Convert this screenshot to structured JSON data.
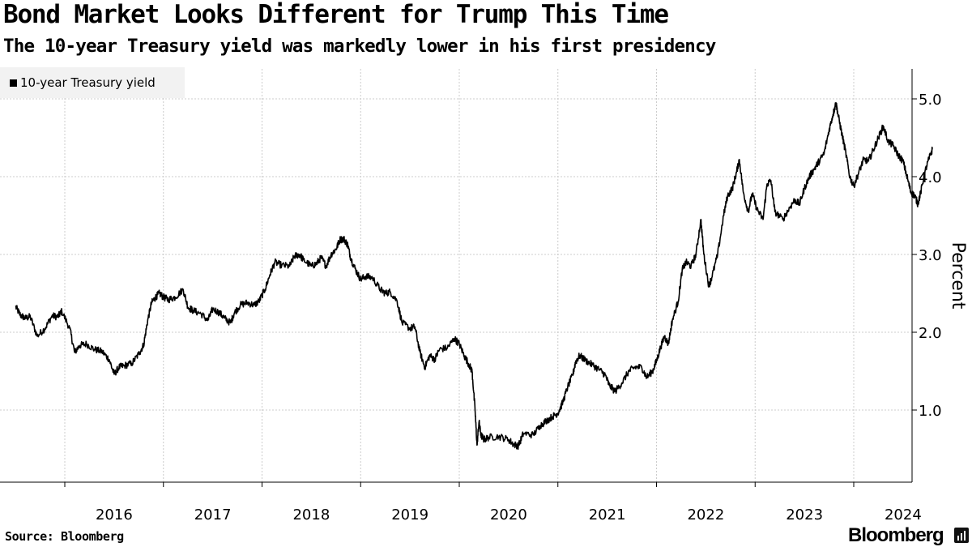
{
  "chart_data": {
    "type": "line",
    "title": "Bond Market Looks Different for Trump This Time",
    "subtitle": "The 10-year Treasury yield was markedly lower in his first presidency",
    "ylabel": "Percent",
    "xlabel": "",
    "ylim": [
      0.0,
      5.45
    ],
    "xlim": [
      2015.5,
      2024.83
    ],
    "y_ticks": [
      1.0,
      2.0,
      3.0,
      4.0,
      5.0
    ],
    "y_tick_labels": [
      "1.0",
      "2.0",
      "3.0",
      "4.0",
      "5.0"
    ],
    "x_ticks": [
      2016,
      2017,
      2018,
      2019,
      2020,
      2021,
      2022,
      2023,
      2024
    ],
    "x_tick_labels": [
      "2016",
      "2017",
      "2018",
      "2019",
      "2020",
      "2021",
      "2022",
      "2023",
      "2024"
    ],
    "grid": true,
    "legend_position": "top-left",
    "series": [
      {
        "name": "10-year Treasury yield",
        "color": "#000000",
        "points": [
          [
            2015.5,
            2.33
          ],
          [
            2015.55,
            2.22
          ],
          [
            2015.6,
            2.18
          ],
          [
            2015.65,
            2.2
          ],
          [
            2015.72,
            1.95
          ],
          [
            2015.8,
            2.05
          ],
          [
            2015.87,
            2.21
          ],
          [
            2015.93,
            2.2
          ],
          [
            2015.97,
            2.27
          ],
          [
            2016.05,
            2.05
          ],
          [
            2016.1,
            1.74
          ],
          [
            2016.15,
            1.83
          ],
          [
            2016.22,
            1.85
          ],
          [
            2016.3,
            1.78
          ],
          [
            2016.38,
            1.75
          ],
          [
            2016.45,
            1.65
          ],
          [
            2016.5,
            1.46
          ],
          [
            2016.55,
            1.55
          ],
          [
            2016.6,
            1.57
          ],
          [
            2016.68,
            1.6
          ],
          [
            2016.75,
            1.72
          ],
          [
            2016.8,
            1.84
          ],
          [
            2016.84,
            2.15
          ],
          [
            2016.88,
            2.38
          ],
          [
            2016.92,
            2.45
          ],
          [
            2016.96,
            2.5
          ],
          [
            2017.0,
            2.45
          ],
          [
            2017.05,
            2.42
          ],
          [
            2017.12,
            2.45
          ],
          [
            2017.2,
            2.55
          ],
          [
            2017.25,
            2.32
          ],
          [
            2017.3,
            2.28
          ],
          [
            2017.38,
            2.24
          ],
          [
            2017.45,
            2.15
          ],
          [
            2017.5,
            2.3
          ],
          [
            2017.57,
            2.25
          ],
          [
            2017.62,
            2.18
          ],
          [
            2017.68,
            2.12
          ],
          [
            2017.72,
            2.25
          ],
          [
            2017.78,
            2.35
          ],
          [
            2017.85,
            2.38
          ],
          [
            2017.92,
            2.35
          ],
          [
            2017.97,
            2.4
          ],
          [
            2018.03,
            2.55
          ],
          [
            2018.08,
            2.74
          ],
          [
            2018.13,
            2.9
          ],
          [
            2018.2,
            2.86
          ],
          [
            2018.28,
            2.85
          ],
          [
            2018.33,
            2.98
          ],
          [
            2018.38,
            3.0
          ],
          [
            2018.42,
            2.93
          ],
          [
            2018.5,
            2.85
          ],
          [
            2018.55,
            2.88
          ],
          [
            2018.6,
            2.96
          ],
          [
            2018.65,
            2.85
          ],
          [
            2018.7,
            3.0
          ],
          [
            2018.75,
            3.07
          ],
          [
            2018.79,
            3.19
          ],
          [
            2018.83,
            3.2
          ],
          [
            2018.87,
            3.12
          ],
          [
            2018.9,
            2.95
          ],
          [
            2018.95,
            2.8
          ],
          [
            2019.0,
            2.68
          ],
          [
            2019.05,
            2.72
          ],
          [
            2019.12,
            2.7
          ],
          [
            2019.2,
            2.55
          ],
          [
            2019.25,
            2.5
          ],
          [
            2019.3,
            2.52
          ],
          [
            2019.37,
            2.4
          ],
          [
            2019.42,
            2.12
          ],
          [
            2019.5,
            2.05
          ],
          [
            2019.55,
            2.07
          ],
          [
            2019.6,
            1.75
          ],
          [
            2019.65,
            1.55
          ],
          [
            2019.7,
            1.7
          ],
          [
            2019.75,
            1.65
          ],
          [
            2019.8,
            1.78
          ],
          [
            2019.88,
            1.8
          ],
          [
            2019.95,
            1.92
          ],
          [
            2020.0,
            1.85
          ],
          [
            2020.05,
            1.7
          ],
          [
            2020.1,
            1.58
          ],
          [
            2020.13,
            1.5
          ],
          [
            2020.16,
            1.0
          ],
          [
            2020.18,
            0.55
          ],
          [
            2020.2,
            0.85
          ],
          [
            2020.22,
            0.68
          ],
          [
            2020.25,
            0.62
          ],
          [
            2020.3,
            0.65
          ],
          [
            2020.4,
            0.66
          ],
          [
            2020.5,
            0.62
          ],
          [
            2020.55,
            0.56
          ],
          [
            2020.6,
            0.54
          ],
          [
            2020.65,
            0.7
          ],
          [
            2020.75,
            0.68
          ],
          [
            2020.82,
            0.8
          ],
          [
            2020.88,
            0.86
          ],
          [
            2020.95,
            0.92
          ],
          [
            2021.0,
            0.96
          ],
          [
            2021.05,
            1.1
          ],
          [
            2021.1,
            1.3
          ],
          [
            2021.15,
            1.45
          ],
          [
            2021.18,
            1.62
          ],
          [
            2021.22,
            1.7
          ],
          [
            2021.28,
            1.64
          ],
          [
            2021.35,
            1.58
          ],
          [
            2021.42,
            1.52
          ],
          [
            2021.48,
            1.45
          ],
          [
            2021.52,
            1.32
          ],
          [
            2021.58,
            1.24
          ],
          [
            2021.65,
            1.35
          ],
          [
            2021.72,
            1.5
          ],
          [
            2021.78,
            1.55
          ],
          [
            2021.85,
            1.55
          ],
          [
            2021.9,
            1.42
          ],
          [
            2021.96,
            1.5
          ],
          [
            2022.0,
            1.63
          ],
          [
            2022.04,
            1.8
          ],
          [
            2022.08,
            1.95
          ],
          [
            2022.12,
            1.85
          ],
          [
            2022.16,
            2.15
          ],
          [
            2022.22,
            2.4
          ],
          [
            2022.26,
            2.8
          ],
          [
            2022.3,
            2.9
          ],
          [
            2022.35,
            2.85
          ],
          [
            2022.4,
            3.0
          ],
          [
            2022.45,
            3.45
          ],
          [
            2022.48,
            3.0
          ],
          [
            2022.53,
            2.6
          ],
          [
            2022.56,
            2.7
          ],
          [
            2022.62,
            3.0
          ],
          [
            2022.68,
            3.5
          ],
          [
            2022.72,
            3.75
          ],
          [
            2022.77,
            3.85
          ],
          [
            2022.81,
            4.05
          ],
          [
            2022.84,
            4.22
          ],
          [
            2022.88,
            3.8
          ],
          [
            2022.93,
            3.55
          ],
          [
            2022.97,
            3.78
          ],
          [
            2023.02,
            3.58
          ],
          [
            2023.08,
            3.45
          ],
          [
            2023.12,
            3.9
          ],
          [
            2023.16,
            3.95
          ],
          [
            2023.2,
            3.55
          ],
          [
            2023.28,
            3.45
          ],
          [
            2023.35,
            3.6
          ],
          [
            2023.4,
            3.7
          ],
          [
            2023.45,
            3.65
          ],
          [
            2023.5,
            3.85
          ],
          [
            2023.55,
            4.0
          ],
          [
            2023.6,
            4.1
          ],
          [
            2023.65,
            4.2
          ],
          [
            2023.7,
            4.3
          ],
          [
            2023.75,
            4.6
          ],
          [
            2023.79,
            4.8
          ],
          [
            2023.82,
            4.95
          ],
          [
            2023.84,
            4.8
          ],
          [
            2023.88,
            4.55
          ],
          [
            2023.92,
            4.3
          ],
          [
            2023.96,
            4.0
          ],
          [
            2024.0,
            3.88
          ],
          [
            2024.05,
            4.05
          ],
          [
            2024.1,
            4.22
          ],
          [
            2024.15,
            4.2
          ],
          [
            2024.2,
            4.35
          ],
          [
            2024.25,
            4.5
          ],
          [
            2024.3,
            4.65
          ],
          [
            2024.35,
            4.45
          ],
          [
            2024.4,
            4.4
          ],
          [
            2024.45,
            4.28
          ],
          [
            2024.5,
            4.2
          ],
          [
            2024.55,
            3.95
          ],
          [
            2024.58,
            3.8
          ],
          [
            2024.62,
            3.75
          ],
          [
            2024.65,
            3.65
          ],
          [
            2024.68,
            3.8
          ],
          [
            2024.72,
            4.05
          ],
          [
            2024.76,
            4.22
          ],
          [
            2024.8,
            4.36
          ]
        ]
      }
    ]
  },
  "header": {
    "title": "Bond Market Looks Different for Trump This Time",
    "subtitle": "The 10-year Treasury yield was markedly lower in his first presidency"
  },
  "legend": {
    "label": "10-year Treasury yield"
  },
  "footer": {
    "source": "Source: Bloomberg",
    "brand": "Bloomberg"
  }
}
